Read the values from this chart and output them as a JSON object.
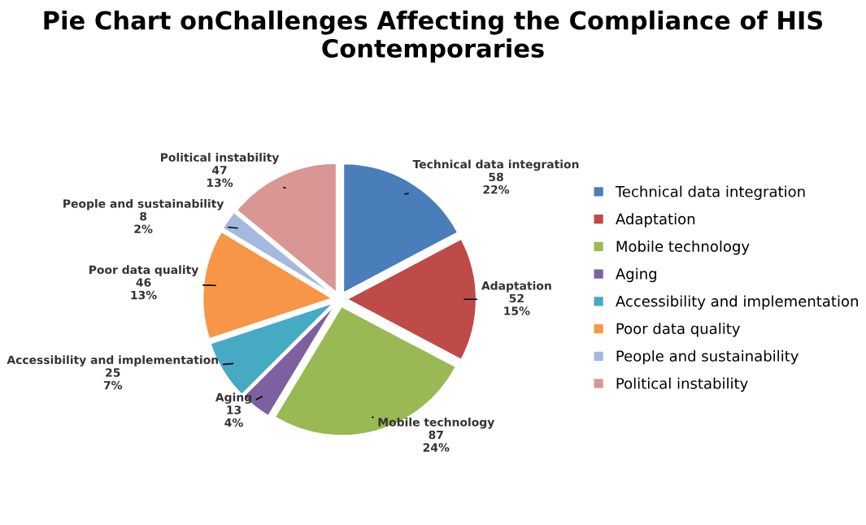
{
  "chart_data": {
    "type": "pie",
    "title": "Pie Chart onChallenges Affecting the Compliance of HIS Contemporaries",
    "categories": [
      "Technical data integration",
      "Adaptation",
      "Mobile technology",
      "Aging",
      "Accessibility and implementation",
      "Poor data quality",
      "People and sustainability",
      "Political instability"
    ],
    "values": [
      58,
      52,
      87,
      13,
      25,
      46,
      8,
      47
    ],
    "value_labels": [
      "58\n22%",
      "52\n15%",
      "87\n24%",
      "13\n4%",
      "25\n7%",
      "46\n13%",
      "8\n2%",
      "47\n13%"
    ],
    "colors": [
      "#4a7ebb",
      "#be4b48",
      "#98b954",
      "#7d60a0",
      "#46aac5",
      "#f79646",
      "#a5b9df",
      "#d99694"
    ],
    "legend": "right"
  }
}
